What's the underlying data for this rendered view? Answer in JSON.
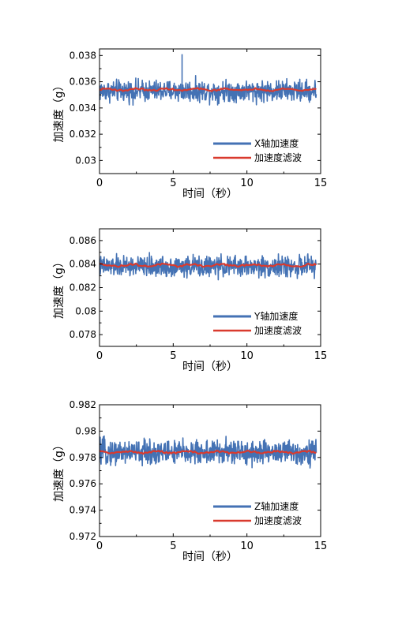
{
  "chart_data": [
    {
      "type": "line",
      "xlabel": "时间（秒）",
      "ylabel": "加速度（g）",
      "xlim": [
        0,
        15
      ],
      "ylim": [
        0.029,
        0.0385
      ],
      "xticks": [
        0,
        5,
        10,
        15
      ],
      "xtick_labels": [
        "0",
        "5",
        "10",
        "15"
      ],
      "yticks": [
        0.03,
        0.032,
        0.034,
        0.036,
        0.038
      ],
      "ytick_labels": [
        "0.03",
        "0.032",
        "0.034",
        "0.036",
        "0.038"
      ],
      "legend_position": "bottom-right",
      "series": [
        {
          "name": "X轴加速度",
          "color": "#4472b4",
          "kind": "noise",
          "mean": 0.0353,
          "amplitude": 0.0012,
          "x_end": 14.7
        },
        {
          "name": "加速度滤波",
          "color": "#d93a2e",
          "kind": "filtered",
          "mean": 0.0354,
          "amplitude": 0.00012,
          "x_end": 14.7
        }
      ],
      "annotations": [
        {
          "x": 5.6,
          "y": 0.0381,
          "label": "spike"
        }
      ]
    },
    {
      "type": "line",
      "xlabel": "时间（秒）",
      "ylabel": "加速度（g）",
      "xlim": [
        0,
        15
      ],
      "ylim": [
        0.077,
        0.087
      ],
      "xticks": [
        0,
        5,
        10,
        15
      ],
      "xtick_labels": [
        "0",
        "5",
        "10",
        "15"
      ],
      "yticks": [
        0.078,
        0.08,
        0.082,
        0.084,
        0.086
      ],
      "ytick_labels": [
        "0.078",
        "0.08",
        "0.082",
        "0.084",
        "0.086"
      ],
      "legend_position": "bottom-right",
      "series": [
        {
          "name": "Y轴加速度",
          "color": "#4472b4",
          "kind": "noise",
          "mean": 0.0838,
          "amplitude": 0.0013,
          "x_end": 14.7
        },
        {
          "name": "加速度滤波",
          "color": "#d93a2e",
          "kind": "filtered",
          "mean": 0.0839,
          "amplitude": 0.00015,
          "x_end": 14.7
        }
      ]
    },
    {
      "type": "line",
      "xlabel": "时间（秒）",
      "ylabel": "加速度（g）",
      "xlim": [
        0,
        15
      ],
      "ylim": [
        0.972,
        0.982
      ],
      "xticks": [
        0,
        5,
        10,
        15
      ],
      "xtick_labels": [
        "0",
        "5",
        "10",
        "15"
      ],
      "yticks": [
        0.972,
        0.974,
        0.976,
        0.978,
        0.98,
        0.982
      ],
      "ytick_labels": [
        "0.972",
        "0.974",
        "0.976",
        "0.978",
        "0.98",
        "0.982"
      ],
      "legend_position": "bottom-right",
      "series": [
        {
          "name": "Z轴加速度",
          "color": "#4472b4",
          "kind": "noise",
          "mean": 0.9784,
          "amplitude": 0.0014,
          "x_end": 14.7
        },
        {
          "name": "加速度滤波",
          "color": "#d93a2e",
          "kind": "filtered",
          "mean": 0.9784,
          "amplitude": 0.00012,
          "x_end": 14.7
        }
      ]
    }
  ]
}
